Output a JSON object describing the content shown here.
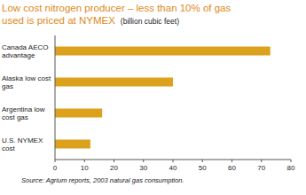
{
  "chart_data": {
    "type": "bar",
    "orientation": "horizontal",
    "title": "Low cost nitrogen producer – less than 10% of gas used is priced at NYMEX",
    "subtitle": "(billion cubic feet)",
    "categories": [
      "Canada AECO advantage",
      "Alaska low cost gas",
      "Argentina low cost gas",
      "U.S. NYMEX cost"
    ],
    "values": [
      73,
      40,
      16,
      12
    ],
    "color": "#dca21e",
    "xlim": [
      0,
      80
    ],
    "xticks": [
      0,
      10,
      20,
      30,
      40,
      50,
      60,
      70,
      80
    ],
    "grid": false,
    "annotations": [
      "Source: Agrium reports, 2003 natural gas consumption."
    ]
  }
}
